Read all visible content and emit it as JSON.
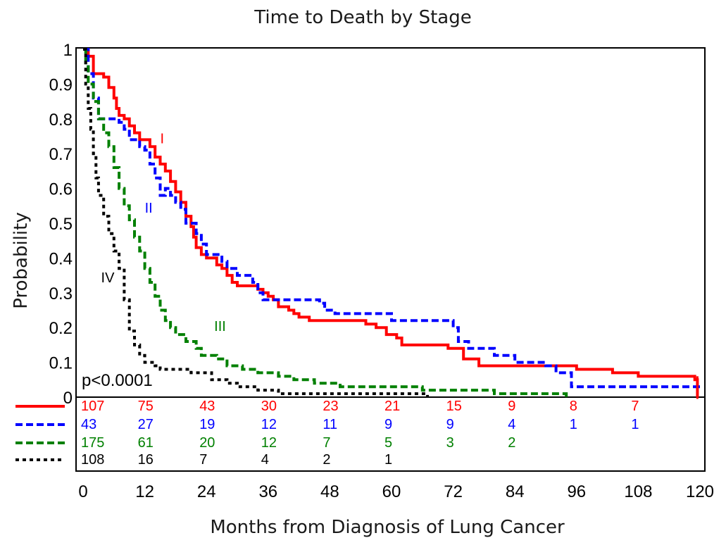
{
  "title": "Time to Death by Stage",
  "xlabel": "Months from Diagnosis of Lung Cancer",
  "ylabel": "Probability",
  "p_value": "p<0.0001",
  "chart_data": {
    "type": "line",
    "title": "Time to Death by Stage",
    "xlabel": "Months from Diagnosis of Lung Cancer",
    "ylabel": "Probability",
    "xlim": [
      0,
      120
    ],
    "ylim": [
      0,
      1
    ],
    "x_ticks": [
      "0",
      "12",
      "24",
      "36",
      "48",
      "60",
      "72",
      "84",
      "96",
      "108",
      "120"
    ],
    "y_ticks": [
      "0",
      "0.1",
      "0.2",
      "0.3",
      "0.4",
      "0.5",
      "0.6",
      "0.7",
      "0.8",
      "0.9",
      "1"
    ],
    "grid": false,
    "series": [
      {
        "name": "I",
        "color": "#ff0000",
        "dash": "solid",
        "points": [
          [
            0,
            1
          ],
          [
            1,
            0.98
          ],
          [
            2,
            0.93
          ],
          [
            4,
            0.92
          ],
          [
            5,
            0.89
          ],
          [
            6,
            0.86
          ],
          [
            6.5,
            0.83
          ],
          [
            7,
            0.81
          ],
          [
            8,
            0.8
          ],
          [
            9,
            0.78
          ],
          [
            10,
            0.76
          ],
          [
            11,
            0.74
          ],
          [
            13,
            0.72
          ],
          [
            14,
            0.69
          ],
          [
            15,
            0.67
          ],
          [
            16,
            0.65
          ],
          [
            17,
            0.62
          ],
          [
            18,
            0.59
          ],
          [
            19,
            0.56
          ],
          [
            20,
            0.52
          ],
          [
            21,
            0.49
          ],
          [
            21.5,
            0.46
          ],
          [
            22,
            0.43
          ],
          [
            23,
            0.41
          ],
          [
            24,
            0.4
          ],
          [
            26,
            0.38
          ],
          [
            27,
            0.37
          ],
          [
            28,
            0.35
          ],
          [
            29,
            0.33
          ],
          [
            30,
            0.32
          ],
          [
            34,
            0.31
          ],
          [
            35,
            0.3
          ],
          [
            36,
            0.29
          ],
          [
            37,
            0.28
          ],
          [
            38,
            0.26
          ],
          [
            40,
            0.25
          ],
          [
            41,
            0.24
          ],
          [
            42,
            0.23
          ],
          [
            44,
            0.22
          ],
          [
            55,
            0.21
          ],
          [
            57,
            0.2
          ],
          [
            59,
            0.18
          ],
          [
            61,
            0.17
          ],
          [
            62,
            0.15
          ],
          [
            71,
            0.14
          ],
          [
            74,
            0.11
          ],
          [
            77,
            0.09
          ],
          [
            96,
            0.08
          ],
          [
            103,
            0.07
          ],
          [
            108,
            0.06
          ],
          [
            119,
            0.05
          ],
          [
            119.5,
            0
          ]
        ]
      },
      {
        "name": "II",
        "color": "#0000ff",
        "dash": "dashed",
        "points": [
          [
            0,
            1
          ],
          [
            1,
            0.93
          ],
          [
            2,
            0.86
          ],
          [
            3,
            0.8
          ],
          [
            7,
            0.79
          ],
          [
            8,
            0.77
          ],
          [
            9,
            0.74
          ],
          [
            11,
            0.72
          ],
          [
            12,
            0.71
          ],
          [
            13,
            0.67
          ],
          [
            14,
            0.63
          ],
          [
            15,
            0.58
          ],
          [
            16,
            0.6
          ],
          [
            17,
            0.58
          ],
          [
            18,
            0.56
          ],
          [
            19,
            0.54
          ],
          [
            20,
            0.5
          ],
          [
            22,
            0.47
          ],
          [
            23,
            0.44
          ],
          [
            24,
            0.41
          ],
          [
            27,
            0.39
          ],
          [
            28,
            0.37
          ],
          [
            30,
            0.35
          ],
          [
            33,
            0.33
          ],
          [
            34,
            0.3
          ],
          [
            35,
            0.28
          ],
          [
            46,
            0.27
          ],
          [
            47,
            0.25
          ],
          [
            49,
            0.24
          ],
          [
            60,
            0.22
          ],
          [
            72,
            0.2
          ],
          [
            73,
            0.16
          ],
          [
            75,
            0.14
          ],
          [
            80,
            0.12
          ],
          [
            84,
            0.1
          ],
          [
            90,
            0.09
          ],
          [
            92,
            0.07
          ],
          [
            95,
            0.03
          ],
          [
            120,
            0.03
          ]
        ]
      },
      {
        "name": "III",
        "color": "#008000",
        "dash": "dashed",
        "points": [
          [
            0,
            1
          ],
          [
            0.5,
            0.95
          ],
          [
            1,
            0.9
          ],
          [
            2,
            0.85
          ],
          [
            3,
            0.8
          ],
          [
            4,
            0.76
          ],
          [
            5,
            0.72
          ],
          [
            6,
            0.66
          ],
          [
            7,
            0.6
          ],
          [
            8,
            0.55
          ],
          [
            9,
            0.51
          ],
          [
            10,
            0.46
          ],
          [
            11,
            0.42
          ],
          [
            12,
            0.37
          ],
          [
            13,
            0.33
          ],
          [
            14,
            0.29
          ],
          [
            15,
            0.25
          ],
          [
            16,
            0.22
          ],
          [
            17,
            0.2
          ],
          [
            18,
            0.18
          ],
          [
            20,
            0.16
          ],
          [
            22,
            0.14
          ],
          [
            23,
            0.12
          ],
          [
            26,
            0.11
          ],
          [
            28,
            0.09
          ],
          [
            31,
            0.08
          ],
          [
            34,
            0.07
          ],
          [
            38,
            0.06
          ],
          [
            41,
            0.05
          ],
          [
            45,
            0.04
          ],
          [
            50,
            0.03
          ],
          [
            66,
            0.02
          ],
          [
            80,
            0.01
          ],
          [
            94,
            0
          ]
        ]
      },
      {
        "name": "IV",
        "color": "#000000",
        "dash": "dotted",
        "points": [
          [
            0,
            1
          ],
          [
            0.5,
            0.9
          ],
          [
            1,
            0.83
          ],
          [
            1.5,
            0.77
          ],
          [
            2,
            0.7
          ],
          [
            2.5,
            0.63
          ],
          [
            3,
            0.58
          ],
          [
            4,
            0.52
          ],
          [
            5,
            0.47
          ],
          [
            6,
            0.42
          ],
          [
            7,
            0.37
          ],
          [
            8,
            0.28
          ],
          [
            9,
            0.19
          ],
          [
            10,
            0.15
          ],
          [
            11,
            0.12
          ],
          [
            12,
            0.1
          ],
          [
            14,
            0.09
          ],
          [
            15,
            0.08
          ],
          [
            21,
            0.07
          ],
          [
            25,
            0.05
          ],
          [
            28,
            0.04
          ],
          [
            30,
            0.03
          ],
          [
            34,
            0.02
          ],
          [
            38,
            0.01
          ],
          [
            67,
            0
          ]
        ]
      }
    ],
    "annotations": [
      {
        "text": "I",
        "x": 15,
        "y": 0.73,
        "color": "#ff0000"
      },
      {
        "text": "II",
        "x": 12,
        "y": 0.53,
        "color": "#0000ff"
      },
      {
        "text": "III",
        "x": 25.5,
        "y": 0.19,
        "color": "#008000"
      },
      {
        "text": "IV",
        "x": 3.5,
        "y": 0.33,
        "color": "#000000"
      }
    ],
    "risk_table": {
      "x": [
        0,
        12,
        24,
        36,
        48,
        60,
        72,
        84,
        96,
        108
      ],
      "rows": [
        {
          "color": "#ff0000",
          "dash": "solid",
          "values": [
            "107",
            "75",
            "43",
            "30",
            "23",
            "21",
            "15",
            "9",
            "8",
            "7"
          ]
        },
        {
          "color": "#0000ff",
          "dash": "dashed",
          "values": [
            "43",
            "27",
            "19",
            "12",
            "11",
            "9",
            "9",
            "4",
            "1",
            "1"
          ]
        },
        {
          "color": "#008000",
          "dash": "dashed",
          "values": [
            "175",
            "61",
            "20",
            "12",
            "7",
            "5",
            "3",
            "2"
          ]
        },
        {
          "color": "#000000",
          "dash": "dotted",
          "values": [
            "108",
            "16",
            "7",
            "4",
            "2",
            "1"
          ]
        }
      ]
    }
  }
}
